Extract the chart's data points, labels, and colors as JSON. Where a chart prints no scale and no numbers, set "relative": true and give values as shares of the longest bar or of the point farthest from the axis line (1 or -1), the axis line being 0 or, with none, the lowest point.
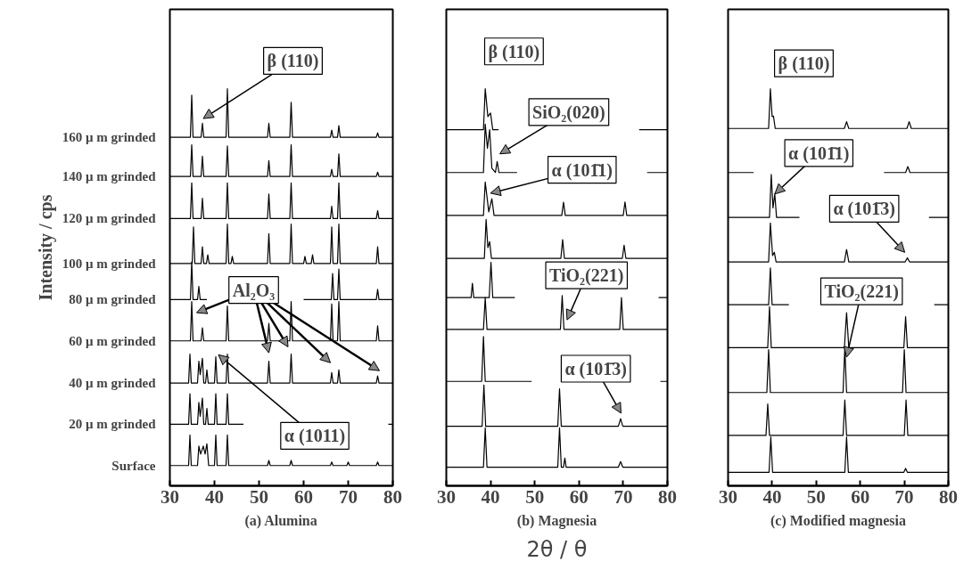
{
  "chart_data": [
    {
      "type": "line",
      "relative": true,
      "xlim": [
        30,
        80
      ],
      "xticks": [
        30,
        40,
        50,
        60,
        70,
        80
      ],
      "xlabel": "(a) Alumina",
      "ylabel": "Intensity / cps",
      "annotations": [
        "β (110)",
        "Al₂O₃",
        "α (1011)"
      ],
      "series": [
        {
          "name": "160 μ m grinded",
          "color": "#000000",
          "x": [
            30,
            34.6,
            34.9,
            35.2,
            37.0,
            37.3,
            37.6,
            42.6,
            42.9,
            43.2,
            51.9,
            52.2,
            52.5,
            56.9,
            57.2,
            57.5,
            66.0,
            66.3,
            66.6,
            67.6,
            67.9,
            68.2,
            76.3,
            76.6,
            76.9,
            80
          ],
          "values": [
            0.878,
            0.878,
            0.984,
            0.878,
            0.878,
            0.913,
            0.878,
            0.878,
            1.0,
            0.878,
            0.878,
            0.913,
            0.878,
            0.878,
            0.966,
            0.878,
            0.878,
            0.896,
            0.878,
            0.878,
            0.907,
            0.878,
            0.878,
            0.889,
            0.878,
            0.878
          ]
        },
        {
          "name": "140 μ m grinded",
          "color": "#000000",
          "x": [
            30,
            34.6,
            34.9,
            35.2,
            37.0,
            37.3,
            37.6,
            42.6,
            42.9,
            43.2,
            51.9,
            52.2,
            52.5,
            56.9,
            57.2,
            57.5,
            66.0,
            66.3,
            66.6,
            67.6,
            67.9,
            68.2,
            76.3,
            76.6,
            76.9,
            80
          ],
          "values": [
            0.779,
            0.779,
            0.859,
            0.779,
            0.779,
            0.83,
            0.779,
            0.779,
            0.856,
            0.779,
            0.779,
            0.819,
            0.779,
            0.779,
            0.859,
            0.779,
            0.779,
            0.797,
            0.779,
            0.779,
            0.836,
            0.779,
            0.779,
            0.79,
            0.779,
            0.779
          ]
        },
        {
          "name": "120 μ m grinded",
          "color": "#000000",
          "x": [
            30,
            34.6,
            34.9,
            35.2,
            37.0,
            37.3,
            37.6,
            42.6,
            42.9,
            43.2,
            51.9,
            52.2,
            52.5,
            56.9,
            57.2,
            57.5,
            66.0,
            66.3,
            66.6,
            67.6,
            67.9,
            68.2,
            76.3,
            76.6,
            76.9,
            80
          ],
          "values": [
            0.673,
            0.673,
            0.763,
            0.673,
            0.673,
            0.724,
            0.673,
            0.673,
            0.763,
            0.673,
            0.673,
            0.735,
            0.673,
            0.673,
            0.763,
            0.673,
            0.673,
            0.704,
            0.673,
            0.673,
            0.763,
            0.673,
            0.673,
            0.693,
            0.673,
            0.673
          ]
        },
        {
          "name": "100 μ m grinded",
          "color": "#000000",
          "x": [
            30,
            35.0,
            35.3,
            35.6,
            37.0,
            37.3,
            37.6,
            38.2,
            38.5,
            38.8,
            42.6,
            42.9,
            43.2,
            43.7,
            44.0,
            44.3,
            51.9,
            52.2,
            52.5,
            56.9,
            57.2,
            57.5,
            60.0,
            60.3,
            60.6,
            61.7,
            62.0,
            62.3,
            66.0,
            66.3,
            66.6,
            67.6,
            67.9,
            68.2,
            76.3,
            76.6,
            76.9,
            80
          ],
          "values": [
            0.56,
            0.56,
            0.652,
            0.56,
            0.56,
            0.602,
            0.56,
            0.56,
            0.582,
            0.56,
            0.56,
            0.659,
            0.56,
            0.56,
            0.578,
            0.56,
            0.56,
            0.635,
            0.56,
            0.56,
            0.659,
            0.56,
            0.56,
            0.578,
            0.56,
            0.56,
            0.582,
            0.56,
            0.56,
            0.652,
            0.56,
            0.56,
            0.659,
            0.56,
            0.56,
            0.602,
            0.56,
            0.56
          ]
        },
        {
          "name": "80 μ m grinded",
          "color": "#000000",
          "x": [
            30,
            34.6,
            34.9,
            35.2,
            36.2,
            36.5,
            36.8,
            38.3,
            38.7,
            59.5,
            60,
            66.2,
            66.5,
            66.8,
            67.6,
            67.9,
            68.2,
            76.3,
            76.6,
            76.9,
            80
          ],
          "values": [
            0.469,
            0.469,
            0.564,
            0.469,
            0.469,
            0.502,
            0.469,
            0.469,
            null,
            null,
            0.469,
            0.469,
            0.535,
            0.469,
            0.469,
            0.546,
            0.469,
            0.469,
            0.495,
            0.469,
            0.469
          ]
        },
        {
          "name": "60 μ m grinded",
          "color": "#000000",
          "x": [
            30,
            34.6,
            34.9,
            35.2,
            37.0,
            37.3,
            37.6,
            42.6,
            42.9,
            43.2,
            51.9,
            52.2,
            52.5,
            56.9,
            57.2,
            57.5,
            66.0,
            66.3,
            66.6,
            67.6,
            67.9,
            68.2,
            76.3,
            76.6,
            76.9,
            80
          ],
          "values": [
            0.365,
            0.365,
            0.464,
            0.365,
            0.365,
            0.398,
            0.365,
            0.365,
            0.453,
            0.365,
            0.365,
            0.409,
            0.365,
            0.365,
            0.464,
            0.365,
            0.365,
            0.458,
            0.365,
            0.365,
            0.464,
            0.365,
            0.365,
            0.403,
            0.365,
            0.365
          ]
        },
        {
          "name": "40 μ m grinded",
          "color": "#000000",
          "x": [
            30,
            34.2,
            34.5,
            34.8,
            36.2,
            36.5,
            36.8,
            37.3,
            37.6,
            38.0,
            38.3,
            38.6,
            40.0,
            40.3,
            40.6,
            42.6,
            42.9,
            43.2,
            51.9,
            52.2,
            52.5,
            56.9,
            57.2,
            57.5,
            66.0,
            66.3,
            66.6,
            67.6,
            67.9,
            68.2,
            76.3,
            76.6,
            76.9,
            80
          ],
          "values": [
            0.259,
            0.259,
            0.332,
            0.259,
            0.259,
            0.314,
            0.28,
            0.321,
            0.259,
            0.259,
            0.292,
            0.259,
            0.259,
            0.325,
            0.259,
            0.259,
            0.332,
            0.259,
            0.259,
            0.314,
            0.259,
            0.259,
            0.332,
            0.259,
            0.259,
            0.285,
            0.259,
            0.259,
            0.292,
            0.259,
            0.259,
            0.277,
            0.259,
            0.259
          ]
        },
        {
          "name": "20 μ m grinded",
          "color": "#000000",
          "x": [
            30,
            34.2,
            34.5,
            34.8,
            36.2,
            36.5,
            36.8,
            37.3,
            37.6,
            38.0,
            38.3,
            38.6,
            40.0,
            40.3,
            40.6,
            42.6,
            42.9,
            43.2,
            46.5,
            47,
            78.5,
            79,
            80
          ],
          "values": [
            0.155,
            0.155,
            0.232,
            0.155,
            0.155,
            0.21,
            0.175,
            0.221,
            0.155,
            0.155,
            0.195,
            0.155,
            0.155,
            0.232,
            0.155,
            0.155,
            0.232,
            0.155,
            0.155,
            null,
            null,
            0.155,
            0.155
          ]
        },
        {
          "name": "Surface",
          "color": "#000000",
          "x": [
            30,
            34.2,
            34.5,
            34.8,
            36.2,
            36.5,
            36.9,
            37.5,
            37.9,
            38.3,
            38.7,
            40.0,
            40.3,
            40.6,
            42.6,
            42.9,
            43.2,
            51.9,
            52.2,
            52.5,
            56.9,
            57.2,
            57.5,
            66.0,
            66.3,
            66.6,
            69.7,
            70.0,
            70.3,
            76.3,
            76.6,
            76.9,
            80
          ],
          "values": [
            0.051,
            0.051,
            0.128,
            0.051,
            0.051,
            0.1,
            0.08,
            0.1,
            0.08,
            0.106,
            0.051,
            0.051,
            0.128,
            0.051,
            0.051,
            0.128,
            0.051,
            0.051,
            0.064,
            0.051,
            0.051,
            0.064,
            0.051,
            0.051,
            0.06,
            0.051,
            0.051,
            0.06,
            0.051,
            0.051,
            0.06,
            0.051,
            0.051
          ]
        }
      ]
    },
    {
      "type": "line",
      "relative": true,
      "xlim": [
        30,
        80
      ],
      "xticks": [
        30,
        40,
        50,
        60,
        70,
        80
      ],
      "xlabel": "(b) Magnesia",
      "annotations": [
        "β (110)",
        "SiO₂(020)",
        "α (101̄1)",
        "TiO₂(221)",
        "α (101̄3)",
        "2θ / θ"
      ],
      "series": [
        {
          "color": "#000000",
          "x": [
            30,
            38.4,
            38.8,
            39.4,
            40.0,
            40.5,
            41.8,
            42.1,
            73.3,
            73.6,
            80
          ],
          "values": [
            0.897,
            0.897,
            1.0,
            0.93,
            0.939,
            0.897,
            0.897,
            null,
            null,
            0.897,
            0.897
          ]
        },
        {
          "color": "#000000",
          "x": [
            30,
            38.4,
            38.8,
            39.3,
            39.8,
            40.3,
            41.1,
            41.5,
            41.9,
            46.0,
            46.4,
            75.0,
            75.4,
            80
          ],
          "values": [
            0.789,
            0.789,
            0.911,
            0.85,
            0.897,
            0.8,
            0.789,
            0.817,
            0.789,
            0.789,
            null,
            null,
            0.789,
            0.789
          ]
        },
        {
          "color": "#000000",
          "x": [
            30,
            38.4,
            38.8,
            39.6,
            40.3,
            40.8,
            56.1,
            56.5,
            56.9,
            70.0,
            70.4,
            70.8,
            80
          ],
          "values": [
            0.681,
            0.681,
            0.765,
            0.69,
            0.723,
            0.681,
            0.681,
            0.714,
            0.681,
            0.681,
            0.715,
            0.681,
            0.681
          ]
        },
        {
          "color": "#000000",
          "x": [
            30,
            38.6,
            39.0,
            39.4,
            39.8,
            40.2,
            55.9,
            56.3,
            56.7,
            69.8,
            70.2,
            70.6,
            80
          ],
          "values": [
            0.573,
            0.573,
            0.671,
            0.6,
            0.615,
            0.573,
            0.573,
            0.62,
            0.573,
            0.573,
            0.606,
            0.573,
            0.573
          ]
        },
        {
          "color": "#000000",
          "x": [
            30,
            35.6,
            35.9,
            36.2,
            39.7,
            40.1,
            40.5,
            45.5,
            45.9,
            77.6,
            78.0,
            80
          ],
          "values": [
            0.474,
            0.474,
            0.51,
            0.474,
            0.474,
            0.563,
            0.474,
            0.474,
            null,
            null,
            0.474,
            0.474
          ]
        },
        {
          "color": "#000000",
          "x": [
            30,
            38.4,
            38.8,
            39.2,
            55.8,
            56.2,
            56.6,
            69.2,
            69.6,
            70.0,
            80
          ],
          "values": [
            0.394,
            0.394,
            0.474,
            0.394,
            0.394,
            0.479,
            0.394,
            0.394,
            0.474,
            0.394,
            0.394
          ]
        },
        {
          "color": "#000000",
          "x": [
            30,
            38.0,
            38.4,
            38.8,
            49.3,
            49.7,
            78.0,
            78.4,
            80
          ],
          "values": [
            0.263,
            0.263,
            0.376,
            0.263,
            0.263,
            null,
            null,
            0.263,
            0.263
          ]
        },
        {
          "color": "#000000",
          "x": [
            30,
            38.1,
            38.5,
            38.9,
            55.2,
            55.6,
            56.0,
            68.9,
            69.4,
            69.9,
            80
          ],
          "values": [
            0.15,
            0.15,
            0.254,
            0.15,
            0.15,
            0.244,
            0.15,
            0.15,
            0.169,
            0.15,
            0.15
          ]
        },
        {
          "color": "#000000",
          "x": [
            30,
            38.4,
            38.8,
            39.2,
            55.2,
            55.6,
            56.0,
            56.5,
            56.8,
            57.1,
            68.9,
            69.4,
            69.9,
            80
          ],
          "values": [
            0.047,
            0.047,
            0.146,
            0.047,
            0.047,
            0.146,
            0.047,
            0.047,
            0.07,
            0.047,
            0.047,
            0.061,
            0.047,
            0.047
          ]
        }
      ]
    },
    {
      "type": "line",
      "relative": true,
      "xlim": [
        30,
        80
      ],
      "xticks": [
        30,
        40,
        50,
        60,
        70,
        80
      ],
      "xlabel": "(c) Modified magnesia",
      "annotations": [
        "β (110)",
        "α (101̄1)",
        "α (101̄3)",
        "TiO₂(221)"
      ],
      "series": [
        {
          "color": "#000000",
          "x": [
            30,
            39.2,
            39.6,
            40.0,
            40.3,
            40.7,
            56.4,
            56.9,
            57.4,
            70.6,
            71.1,
            71.6,
            80
          ],
          "values": [
            0.9,
            0.9,
            1.0,
            0.93,
            0.931,
            0.9,
            0.9,
            0.917,
            0.9,
            0.9,
            0.917,
            0.9,
            0.9
          ]
        },
        {
          "color": "#000000",
          "x": [
            30,
            35.8,
            36.2,
            65.0,
            65.4,
            70.3,
            70.8,
            71.3,
            80
          ],
          "values": [
            0.789,
            0.789,
            null,
            null,
            0.789,
            0.789,
            0.804,
            0.789,
            0.789
          ]
        },
        {
          "color": "#000000",
          "x": [
            30,
            39.4,
            39.8,
            40.2,
            40.6,
            41.0,
            46.2,
            46.6,
            75.2,
            75.6,
            80
          ],
          "values": [
            0.676,
            0.676,
            0.784,
            0.7,
            0.735,
            0.676,
            0.676,
            null,
            null,
            0.676,
            0.676
          ]
        },
        {
          "color": "#000000",
          "x": [
            30,
            39.2,
            39.6,
            40.1,
            40.5,
            40.9,
            56.4,
            56.9,
            57.4,
            70.2,
            70.7,
            71.2,
            80
          ],
          "values": [
            0.564,
            0.564,
            0.662,
            0.58,
            0.588,
            0.564,
            0.564,
            0.595,
            0.564,
            0.564,
            0.574,
            0.564,
            0.564
          ]
        },
        {
          "color": "#000000",
          "x": [
            30,
            39.2,
            39.6,
            40.0,
            43.8,
            44.2,
            76.4,
            76.8,
            80
          ],
          "values": [
            0.456,
            0.456,
            0.549,
            0.456,
            0.456,
            null,
            null,
            0.456,
            0.456
          ]
        },
        {
          "color": "#000000",
          "x": [
            30,
            39.0,
            39.4,
            39.8,
            56.4,
            56.9,
            57.4,
            69.9,
            70.3,
            70.7,
            80
          ],
          "values": [
            0.348,
            0.348,
            0.451,
            0.348,
            0.348,
            0.436,
            0.348,
            0.348,
            0.426,
            0.348,
            0.348
          ]
        },
        {
          "color": "#000000",
          "x": [
            30,
            38.8,
            39.2,
            39.6,
            56.1,
            56.5,
            56.9,
            69.6,
            70.0,
            70.4,
            80
          ],
          "values": [
            0.235,
            0.235,
            0.343,
            0.235,
            0.235,
            0.348,
            0.235,
            0.235,
            0.343,
            0.235,
            0.235
          ]
        },
        {
          "color": "#000000",
          "x": [
            30,
            38.6,
            39.0,
            39.4,
            56.1,
            56.5,
            56.9,
            70.0,
            70.4,
            70.8,
            80
          ],
          "values": [
            0.127,
            0.127,
            0.206,
            0.127,
            0.127,
            0.216,
            0.127,
            0.127,
            0.216,
            0.127,
            0.127
          ]
        },
        {
          "color": "#000000",
          "x": [
            30,
            39.3,
            39.7,
            40.1,
            56.5,
            56.9,
            57.3,
            69.9,
            70.3,
            70.7,
            80
          ],
          "values": [
            0.034,
            0.034,
            0.123,
            0.034,
            0.034,
            0.123,
            0.034,
            0.034,
            0.044,
            0.034,
            0.034
          ]
        }
      ]
    }
  ]
}
